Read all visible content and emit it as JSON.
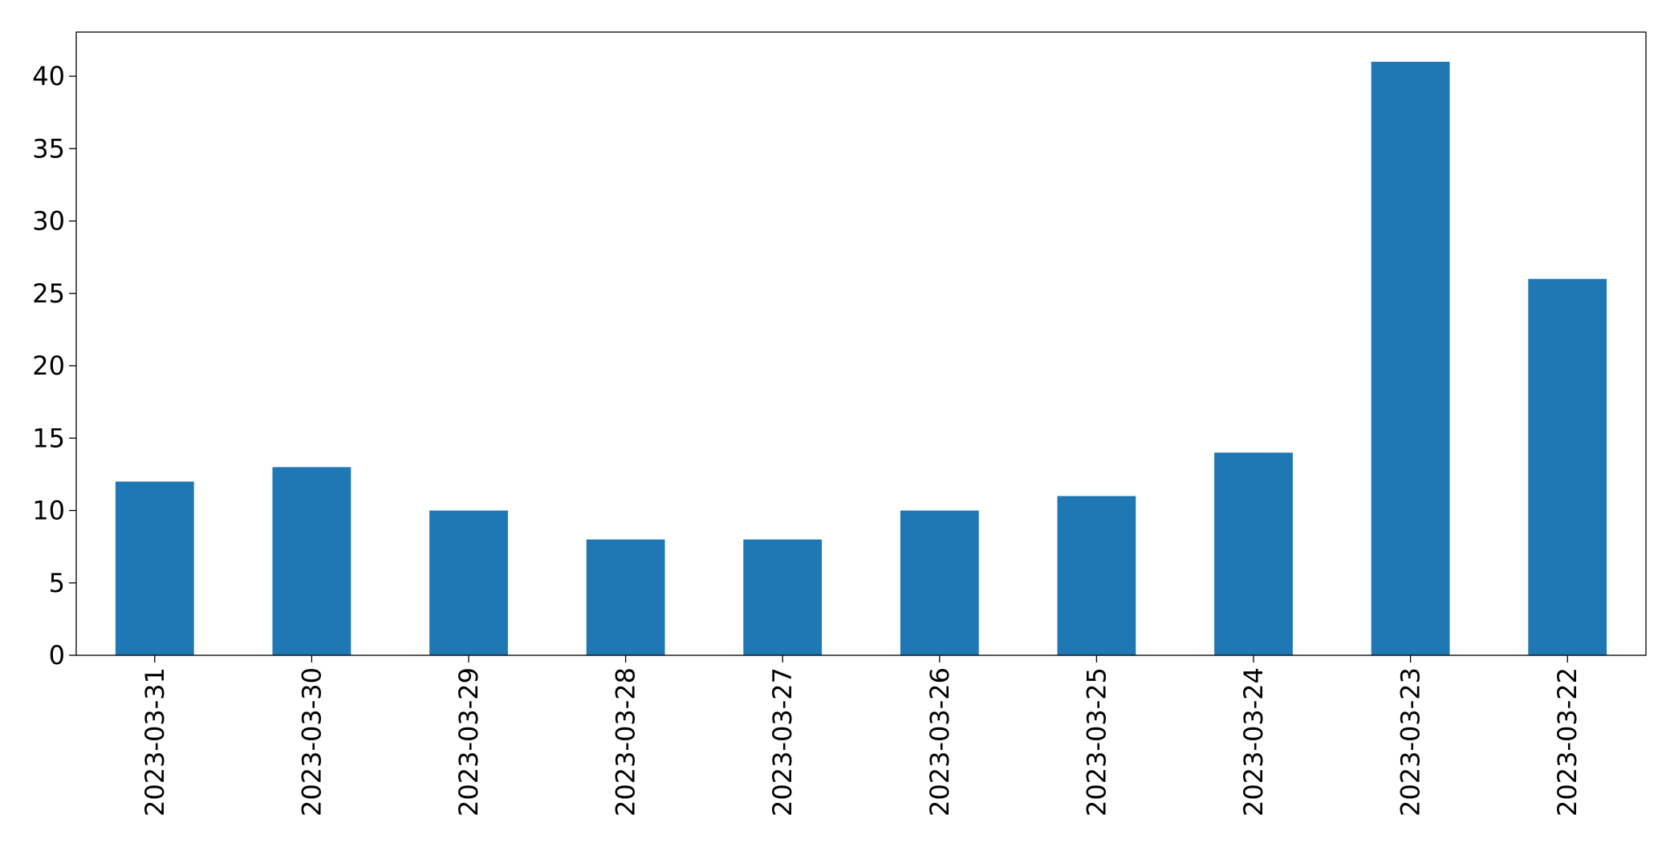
{
  "chart_data": {
    "type": "bar",
    "categories": [
      "2023-03-31",
      "2023-03-30",
      "2023-03-29",
      "2023-03-28",
      "2023-03-27",
      "2023-03-26",
      "2023-03-25",
      "2023-03-24",
      "2023-03-23",
      "2023-03-22"
    ],
    "values": [
      12,
      13,
      10,
      8,
      8,
      10,
      11,
      14,
      41,
      26
    ],
    "color": "#1f77b4",
    "ylim": [
      0,
      43.05
    ],
    "yticks": [
      0,
      5,
      10,
      15,
      20,
      25,
      30,
      35,
      40
    ],
    "grid": false
  }
}
